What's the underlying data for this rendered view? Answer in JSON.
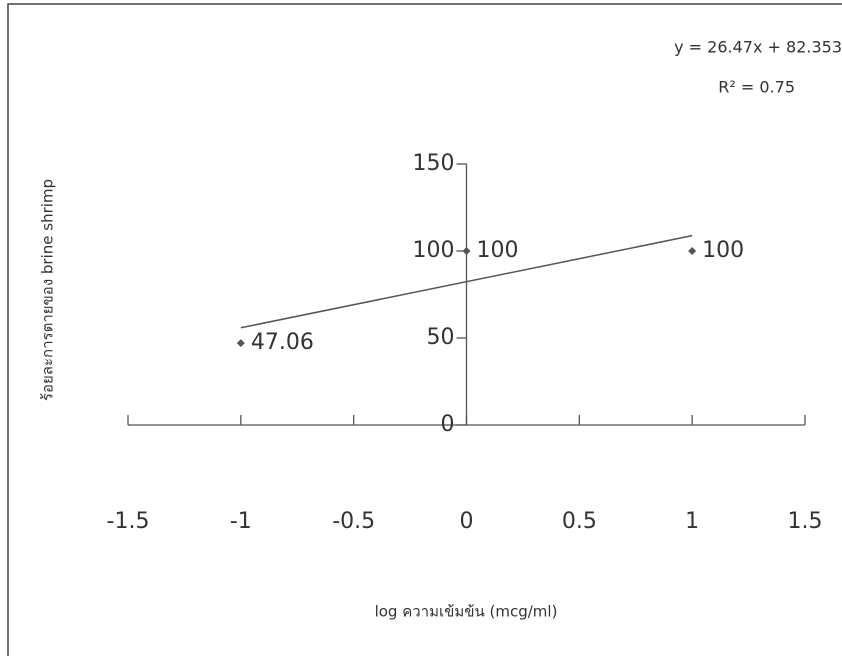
{
  "chart_data": {
    "type": "scatter",
    "x_label": "log ความเข้มข้น (mcg/ml)",
    "y_label": "ร้อยละการตายของ brine shrimp",
    "series": [
      {
        "color": "#555555",
        "x": [
          -1,
          0,
          1
        ],
        "values": [
          47.06,
          100,
          100
        ],
        "value_labels": [
          "47.06",
          "100",
          "100"
        ]
      }
    ],
    "trendline": {
      "label": "y = 26.47x + 82.353",
      "slope": 26.47,
      "intercept": 82.353,
      "r2_label": "R² = 0.75",
      "r2": 0.75,
      "color": "#555555"
    },
    "xlim": [
      -1.5,
      1.5
    ],
    "xticks": [
      -1.5,
      -1,
      -0.5,
      0,
      0.5,
      1,
      1.5
    ],
    "ylim": [
      0,
      150
    ],
    "yticks": [
      0,
      50,
      100,
      150
    ]
  }
}
